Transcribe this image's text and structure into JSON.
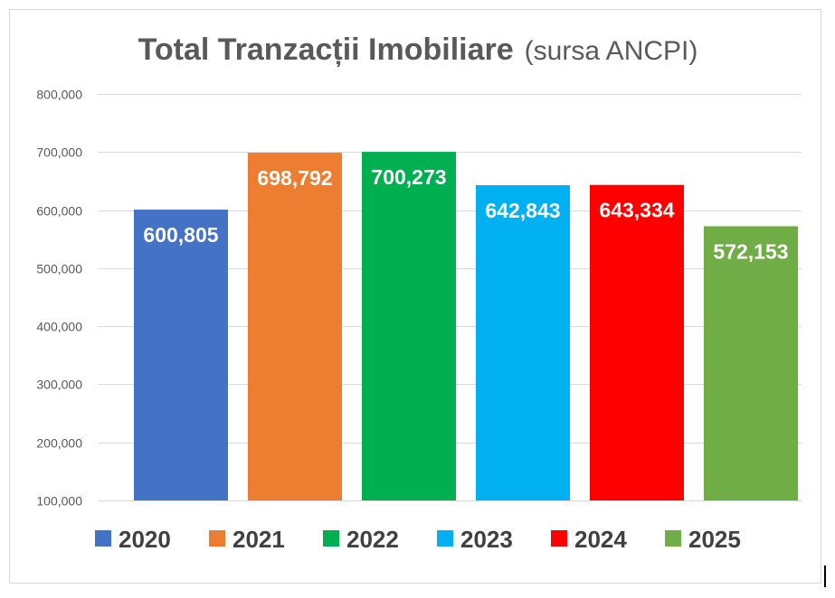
{
  "chart_data": {
    "type": "bar",
    "title": "Total Tranzacții Imobiliare",
    "subtitle": "(sursa ANCPI)",
    "categories": [
      "2020",
      "2021",
      "2022",
      "2023",
      "2024",
      "2025"
    ],
    "values": [
      600805,
      698792,
      700273,
      642843,
      643334,
      572153
    ],
    "data_labels": [
      "600,805",
      "698,792",
      "700,273",
      "642,843",
      "643,334",
      "572,153"
    ],
    "colors": [
      "#4472C4",
      "#ED7D31",
      "#00B050",
      "#00B0F0",
      "#FF0000",
      "#70AD47"
    ],
    "ylim": [
      100000,
      800000
    ],
    "yticks": [
      100000,
      200000,
      300000,
      400000,
      500000,
      600000,
      700000,
      800000
    ],
    "ytick_labels": [
      "100,000",
      "200,000",
      "300,000",
      "400,000",
      "500,000",
      "600,000",
      "700,000",
      "800,000"
    ],
    "xlabel": "",
    "ylabel": "",
    "grid": true,
    "legend": "bottom"
  }
}
